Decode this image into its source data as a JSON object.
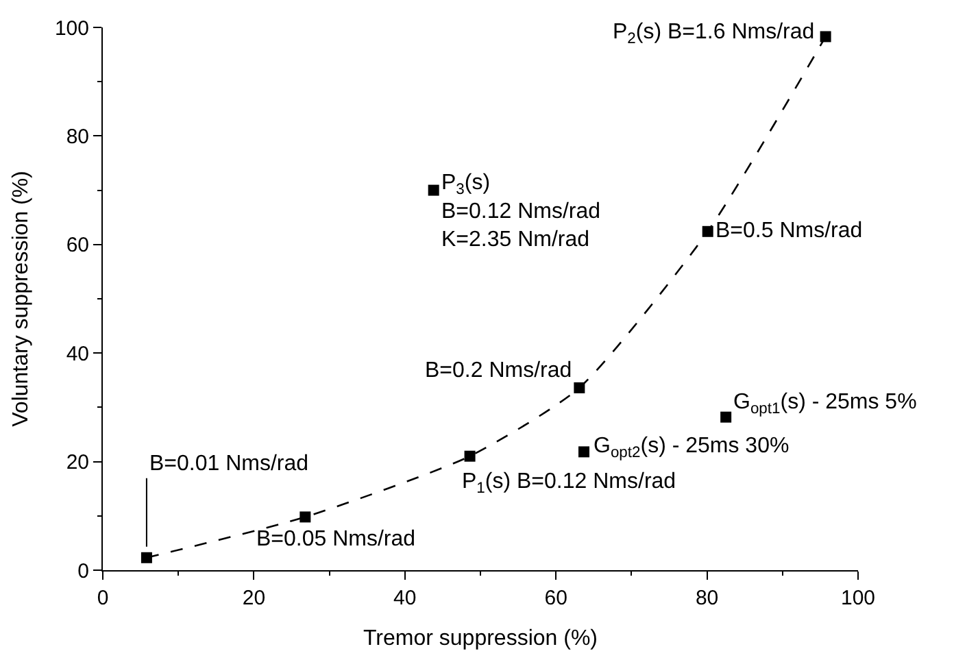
{
  "chart_data": {
    "type": "scatter",
    "xlabel": "Tremor suppression (%)",
    "ylabel": "Voluntary suppression (%)",
    "xlim": [
      0,
      100
    ],
    "ylim": [
      0,
      100
    ],
    "xticks": [
      0,
      {
        "value": 10,
        "label": null
      },
      20,
      {
        "value": 30,
        "label": null
      },
      40,
      {
        "value": 50,
        "label": null
      },
      60,
      {
        "value": 70,
        "label": null
      },
      80,
      {
        "value": 90,
        "label": null
      },
      100
    ],
    "yticks": [
      0,
      {
        "value": 10,
        "label": null
      },
      20,
      {
        "value": 30,
        "label": null
      },
      40,
      {
        "value": 50,
        "label": null
      },
      60,
      {
        "value": 70,
        "label": null
      },
      80,
      {
        "value": 90,
        "label": null
      },
      100
    ],
    "series": [
      {
        "type": "line",
        "color": "#000000",
        "line_style": "dashed",
        "x": [
          5.8,
          26.8,
          48.6,
          63.1,
          80.1,
          95.7
        ],
        "values": [
          2.3,
          9.8,
          21.0,
          33.6,
          62.4,
          98.3
        ]
      },
      {
        "color": "#000000",
        "marker": "square",
        "x": [
          5.8,
          26.8,
          48.6,
          63.1,
          63.7,
          82.5,
          43.8,
          80.1,
          95.7
        ],
        "values": [
          2.3,
          9.8,
          21.0,
          33.6,
          21.8,
          28.2,
          70.0,
          62.4,
          98.3
        ]
      }
    ],
    "annotations": [
      {
        "text": "B=0.01 Nms/rad",
        "x": 5.8,
        "y": 2.3
      },
      {
        "text": "B=0.05 Nms/rad",
        "x": 26.8,
        "y": 9.8
      },
      {
        "text": "P$_{1}$(s) B=0.12 Nms/rad",
        "x": 48.6,
        "y": 21.0
      },
      {
        "text": "B=0.2 Nms/rad",
        "x": 63.1,
        "y": 33.6
      },
      {
        "text": "G$_{opt2}$(s) - 25ms 30%",
        "x": 63.7,
        "y": 21.8
      },
      {
        "text": "G$_{opt1}$(s) - 25ms 5%",
        "x": 82.5,
        "y": 28.2
      },
      {
        "text": "P$_{3}$(s)\nB=0.12 Nms/rad\nK=2.35 Nm/rad",
        "x": 43.8,
        "y": 70.0
      },
      {
        "text": "B=0.5 Nms/rad",
        "x": 80.1,
        "y": 62.4
      },
      {
        "text": "P$_{2}$(s) B=1.6 Nms/rad",
        "x": 95.7,
        "y": 98.3
      }
    ]
  }
}
